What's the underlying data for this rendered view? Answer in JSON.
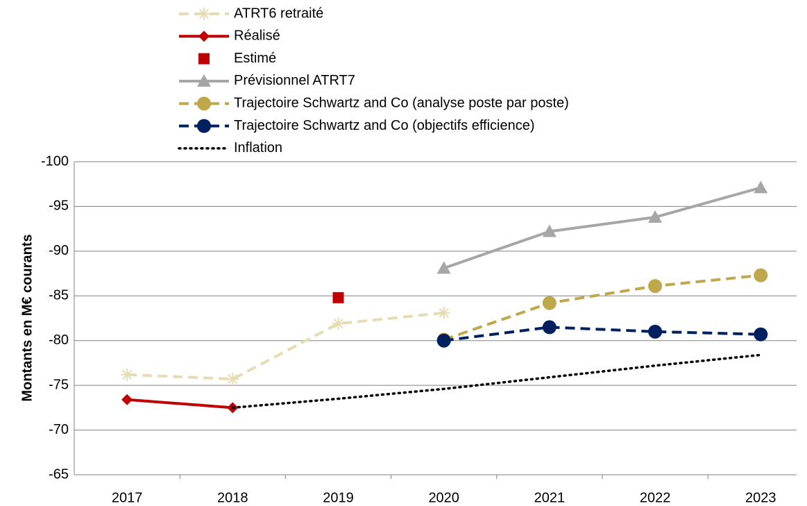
{
  "chart_data": {
    "type": "line",
    "y_label": "Montants en M€ courants",
    "categories": [
      "2017",
      "2018",
      "2019",
      "2020",
      "2021",
      "2022",
      "2023"
    ],
    "ylim": [
      -65,
      -100
    ],
    "yticks": [
      -100,
      -95,
      -90,
      -85,
      -80,
      -75,
      -70,
      -65
    ],
    "grid": true,
    "legend": "top",
    "series": [
      {
        "name": "ATRT6 retraité",
        "color": "#e6dcb4",
        "dash": "dashed",
        "marker": "star",
        "values": [
          -76.2,
          -75.7,
          -81.9,
          -83.1,
          null,
          null,
          null
        ]
      },
      {
        "name": "Réalisé",
        "color": "#c00000",
        "dash": "solid",
        "marker": "diamond",
        "values": [
          -73.4,
          -72.5,
          null,
          null,
          null,
          null,
          null
        ]
      },
      {
        "name": "Estimé",
        "color": "#c00000",
        "dash": "none",
        "marker": "square",
        "values": [
          null,
          null,
          -84.8,
          null,
          null,
          null,
          null
        ]
      },
      {
        "name": "Prévisionnel ATRT7",
        "color": "#a6a6a6",
        "dash": "solid",
        "marker": "triangle",
        "values": [
          null,
          null,
          null,
          -88.1,
          -92.2,
          -93.8,
          -97.1
        ]
      },
      {
        "name": "Trajectoire Schwartz and Co (analyse poste par poste)",
        "color": "#bfa84c",
        "dash": "dashed",
        "marker": "circle",
        "values": [
          null,
          null,
          null,
          -80.1,
          -84.2,
          -86.1,
          -87.3
        ]
      },
      {
        "name": "Trajectoire Schwartz and Co (objectifs efficience)",
        "color": "#002060",
        "dash": "dashed",
        "marker": "circle",
        "values": [
          null,
          null,
          null,
          -80.0,
          -81.5,
          -81.0,
          -80.7
        ]
      },
      {
        "name": "Inflation",
        "color": "#000000",
        "dash": "dotted",
        "marker": "none",
        "values": [
          null,
          -72.5,
          -73.5,
          -74.6,
          -75.9,
          -77.2,
          -78.4
        ]
      }
    ]
  }
}
